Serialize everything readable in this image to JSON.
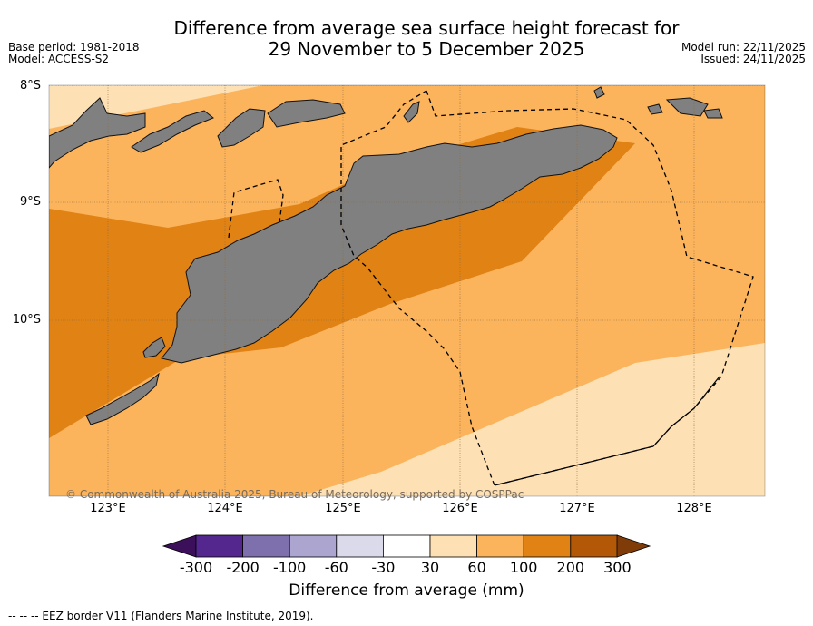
{
  "title_line1": "Difference from average sea surface height forecast for",
  "title_line2": "29 November to 5 December 2025",
  "base_period": "Base period: 1981-2018",
  "model": "Model: ACCESS-S2",
  "model_run": "Model run: 22/11/2025",
  "issued": "Issued: 24/11/2025",
  "map": {
    "latitudes": [
      "8°S",
      "9°S",
      "10°S"
    ],
    "longitudes": [
      "123°E",
      "124°E",
      "125°E",
      "126°E",
      "127°E",
      "128°E"
    ],
    "copyright": "© Commonwealth of Australia 2025, Bureau of Meteorology, supported by COSPPac",
    "land_color": "#808080"
  },
  "colorbar": {
    "title": "Difference from average (mm)",
    "ticks": [
      "-300",
      "-200",
      "-100",
      "-60",
      "-30",
      "30",
      "60",
      "100",
      "200",
      "300"
    ],
    "colors": [
      "#3b0f59",
      "#54278f",
      "#7d70ad",
      "#aba5cf",
      "#dadaeb",
      "#ffffff",
      "#fde0b4",
      "#fbb35c",
      "#e08214",
      "#b35806",
      "#7f3b08"
    ]
  },
  "eez_note": "--  --  -- EEZ border V11 (Flanders Marine Institute, 2019)."
}
